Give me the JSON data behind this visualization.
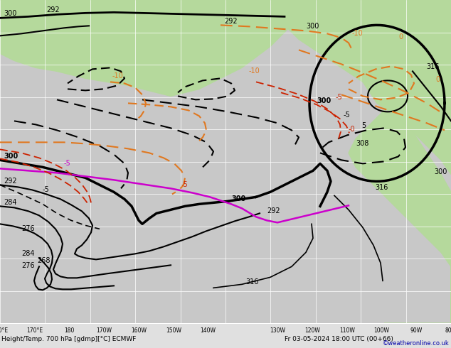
{
  "title": "Height/Temp. 700 hPa [gdmp][°C] ECMWF",
  "datetime_label": "Fr 03-05-2024 18:00 UTC (00+66)",
  "watermark": "©weatheronline.co.uk",
  "bg_land": "#b5d99c",
  "bg_ocean": "#d0d0d0",
  "bg_map": "#c8c8c8",
  "grid_color": "#ffffff",
  "border_color": "#000000",
  "bottom_bar_color": "#e8e8e8",
  "bottom_text_color": "#000000",
  "figsize": [
    6.34,
    4.9
  ],
  "dpi": 100
}
